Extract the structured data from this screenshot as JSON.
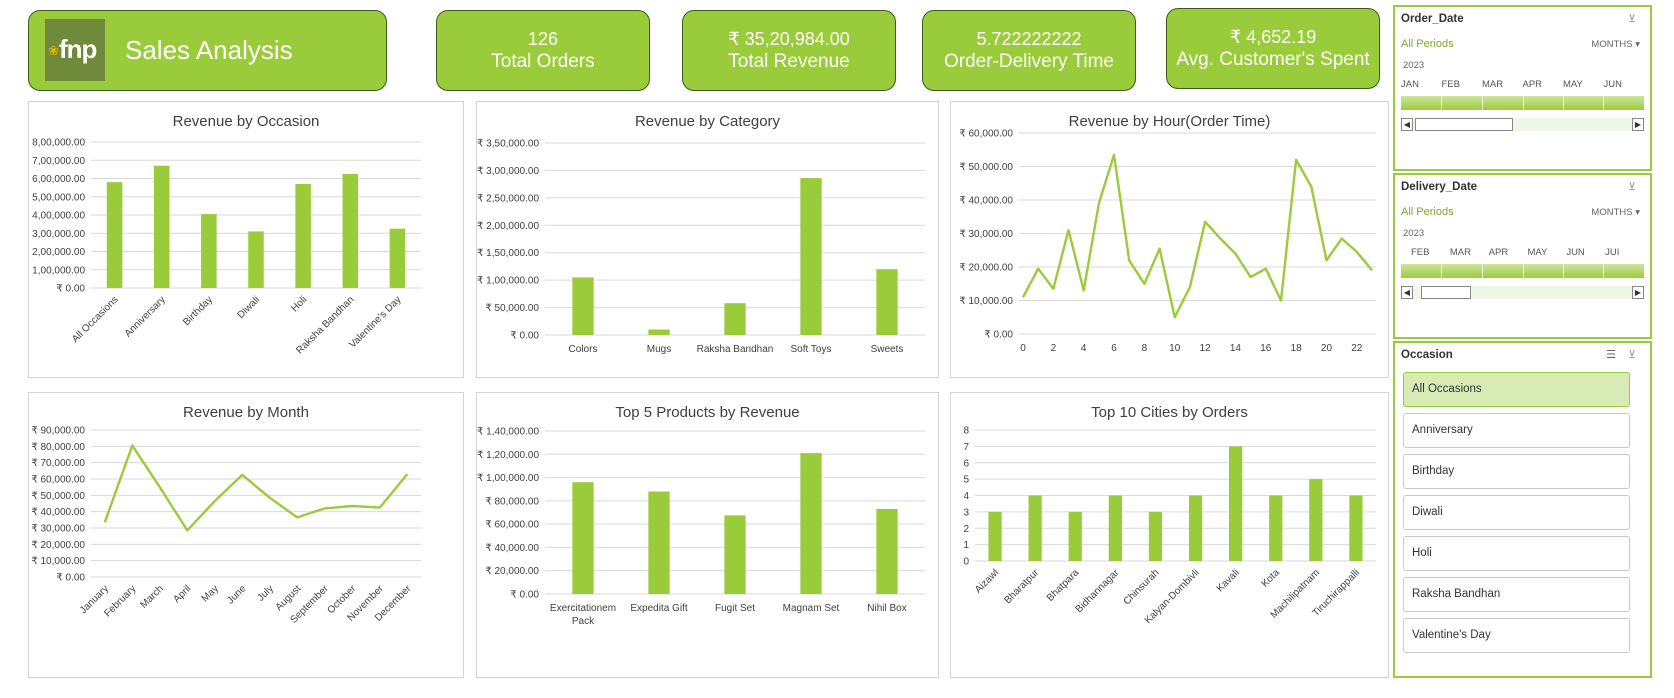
{
  "header": {
    "logo_text": "fnp",
    "title": "Sales Analysis"
  },
  "kpis": [
    {
      "value": "126",
      "label": "Total Orders"
    },
    {
      "value": "₹ 35,20,984.00",
      "label": "Total Revenue"
    },
    {
      "value": "5.722222222",
      "label": "Order-Delivery Time"
    },
    {
      "value": "₹ 4,652.19",
      "label": "Avg. Customer's Spent"
    }
  ],
  "colors": {
    "accent": "#9acb3b",
    "border": "#3e5a1c"
  },
  "slicers": {
    "order_date": {
      "title": "Order_Date",
      "all_periods": "All Periods",
      "granularity": "MONTHS",
      "year": "2023",
      "months": [
        "JAN",
        "FEB",
        "MAR",
        "APR",
        "MAY",
        "JUN"
      ]
    },
    "delivery_date": {
      "title": "Delivery_Date",
      "all_periods": "All Periods",
      "granularity": "MONTHS",
      "year": "2023",
      "months": [
        "FEB",
        "MAR",
        "APR",
        "MAY",
        "JUN",
        "JUI"
      ]
    },
    "occasion": {
      "title": "Occasion",
      "items": [
        "All Occasions",
        "Anniversary",
        "Birthday",
        "Diwali",
        "Holi",
        "Raksha Bandhan",
        "Valentine's Day"
      ],
      "selected": "All Occasions"
    }
  },
  "chart_data": [
    {
      "id": "occasion",
      "type": "bar",
      "title": "Revenue by Occasion",
      "categories": [
        "All Occasions",
        "Anniversary",
        "Birthday",
        "Diwali",
        "Holi",
        "Raksha Bandhan",
        "Valentine's Day"
      ],
      "values": [
        580000,
        670000,
        405000,
        310000,
        570000,
        625000,
        325000
      ],
      "ylim": [
        0,
        800000
      ],
      "yticks": [
        "₹ 0.00",
        "₹ 1,00,000.00",
        "₹ 2,00,000.00",
        "₹ 3,00,000.00",
        "₹ 4,00,000.00",
        "₹ 5,00,000.00",
        "₹ 6,00,000.00",
        "₹ 7,00,000.00",
        "₹ 8,00,000.00"
      ]
    },
    {
      "id": "category",
      "type": "bar",
      "title": "Revenue by Category",
      "categories": [
        "Colors",
        "Mugs",
        "Raksha Bandhan",
        "Soft Toys",
        "Sweets"
      ],
      "values": [
        105000,
        10000,
        58000,
        286000,
        120000
      ],
      "ylim": [
        0,
        350000
      ],
      "yticks": [
        "₹ 0.00",
        "₹ 50,000.00",
        "₹ 1,00,000.00",
        "₹ 1,50,000.00",
        "₹ 2,00,000.00",
        "₹ 2,50,000.00",
        "₹ 3,00,000.00",
        "₹ 3,50,000.00"
      ]
    },
    {
      "id": "hour",
      "type": "line",
      "title": "Revenue by Hour(Order Time)",
      "x": [
        0,
        1,
        2,
        3,
        4,
        5,
        6,
        7,
        8,
        9,
        10,
        11,
        12,
        13,
        14,
        15,
        16,
        17,
        18,
        19,
        20,
        21,
        22,
        23
      ],
      "values": [
        11000,
        19500,
        13500,
        31000,
        13000,
        39000,
        53500,
        22000,
        15000,
        25500,
        5000,
        14000,
        33500,
        28500,
        24000,
        17000,
        19500,
        10000,
        52000,
        44000,
        22000,
        28500,
        24500,
        19000
      ],
      "xticks": [
        "0",
        "2",
        "4",
        "6",
        "8",
        "10",
        "12",
        "14",
        "16",
        "18",
        "20",
        "22"
      ],
      "ylim": [
        0,
        60000
      ],
      "yticks": [
        "₹ 0.00",
        "₹ 10,000.00",
        "₹ 20,000.00",
        "₹ 30,000.00",
        "₹ 40,000.00",
        "₹ 50,000.00",
        "₹ 60,000.00"
      ]
    },
    {
      "id": "month",
      "type": "line",
      "title": "Revenue by Month",
      "categories": [
        "January",
        "February",
        "March",
        "April",
        "May",
        "June",
        "July",
        "August",
        "September",
        "October",
        "November",
        "December"
      ],
      "values": [
        33500,
        80500,
        55000,
        28500,
        46500,
        62500,
        48500,
        36500,
        42000,
        43500,
        42500,
        63000
      ],
      "ylim": [
        0,
        90000
      ],
      "yticks": [
        "₹ 0.00",
        "₹ 10,000.00",
        "₹ 20,000.00",
        "₹ 30,000.00",
        "₹ 40,000.00",
        "₹ 50,000.00",
        "₹ 60,000.00",
        "₹ 70,000.00",
        "₹ 80,000.00",
        "₹ 90,000.00"
      ]
    },
    {
      "id": "products",
      "type": "bar",
      "title": "Top 5 Products by Revenue",
      "categories": [
        "Exercitationem Pack",
        "Expedita Gift",
        "Fugit Set",
        "Magnam Set",
        "Nihil Box"
      ],
      "values": [
        96000,
        88000,
        67500,
        121000,
        73000
      ],
      "ylim": [
        0,
        140000
      ],
      "yticks": [
        "₹ 0.00",
        "₹ 20,000.00",
        "₹ 40,000.00",
        "₹ 60,000.00",
        "₹ 80,000.00",
        "₹ 1,00,000.00",
        "₹ 1,20,000.00",
        "₹ 1,40,000.00"
      ]
    },
    {
      "id": "cities",
      "type": "bar",
      "title": "Top 10 Cities by Orders",
      "categories": [
        "Aizawl",
        "Bharatpur",
        "Bhatpara",
        "Bidhannagar",
        "Chinsurah",
        "Kalyan-Dombivli",
        "Kavali",
        "Kota",
        "Machilipatnam",
        "Tiruchirappalli"
      ],
      "values": [
        3,
        4,
        3,
        4,
        3,
        4,
        7,
        4,
        5,
        4
      ],
      "ylim": [
        0,
        8
      ],
      "yticks": [
        "0",
        "1",
        "2",
        "3",
        "4",
        "5",
        "6",
        "7",
        "8"
      ]
    }
  ]
}
